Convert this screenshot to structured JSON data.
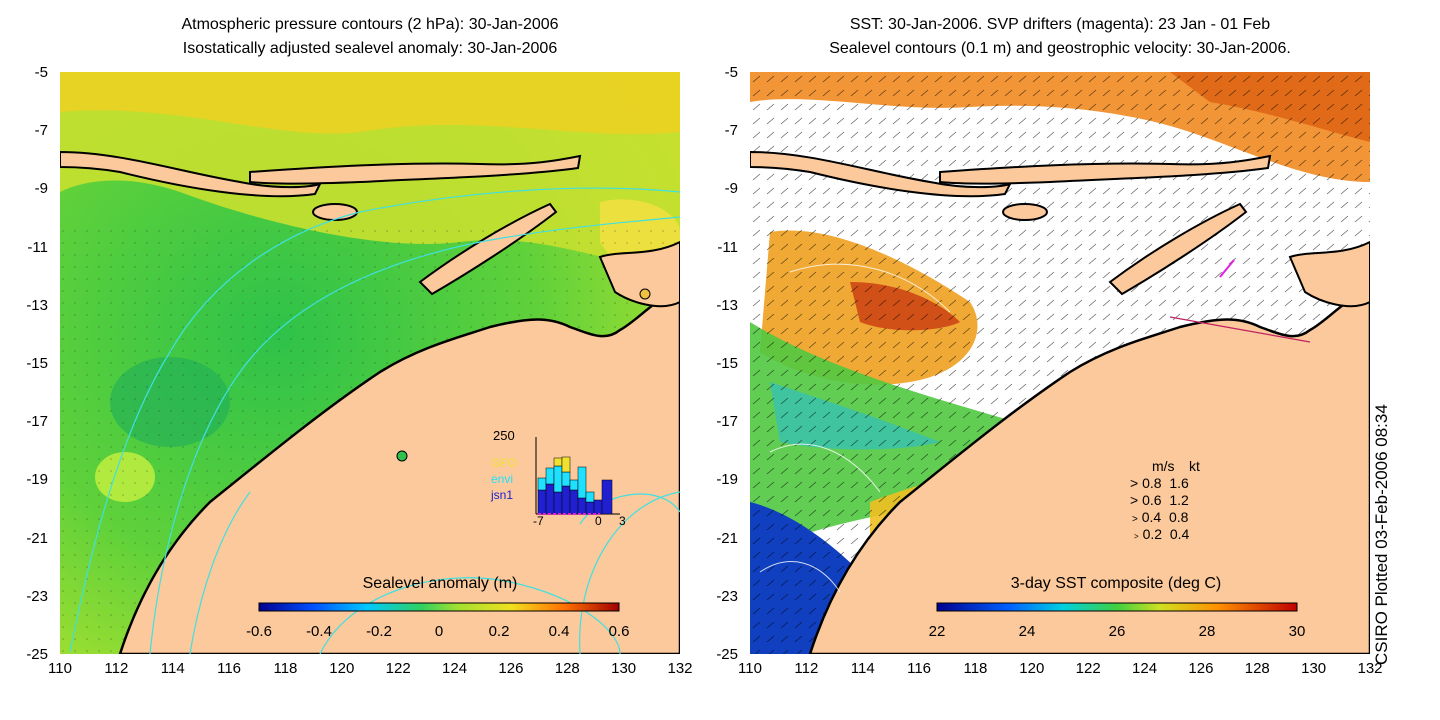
{
  "left_panel": {
    "title_line1": "Atmospheric pressure contours (2 hPa): 30-Jan-2006",
    "title_line2": "Isostatically adjusted sealevel anomaly: 30-Jan-2006",
    "colorbar_label": "Sealevel anomaly (m)",
    "colorbar_ticks": [
      "-0.6",
      "-0.4",
      "-0.2",
      "0",
      "0.2",
      "0.4",
      "0.6"
    ],
    "inset": {
      "ymax_label": "250",
      "series_labels": [
        "GFO",
        "envi",
        "jsn1"
      ],
      "series_colors": [
        "#f0e030",
        "#20e0ff",
        "#2020d0"
      ],
      "x_labels": [
        "-7",
        "0",
        "3"
      ]
    }
  },
  "right_panel": {
    "title_line1": "SST: 30-Jan-2006. SVP drifters (magenta): 23 Jan - 01 Feb",
    "title_line2": "Sealevel contours (0.1 m) and geostrophic velocity: 30-Jan-2006.",
    "colorbar_label": "3-day SST composite (deg C)",
    "colorbar_ticks": [
      "22",
      "24",
      "26",
      "28",
      "30"
    ],
    "speed_legend": {
      "header_ms": "m/s",
      "header_kt": "kt",
      "rows": [
        {
          "ms": "0.8",
          "kt": "1.6"
        },
        {
          "ms": "0.6",
          "kt": "1.2"
        },
        {
          "ms": "0.4",
          "kt": "0.8"
        },
        {
          "ms": "0.2",
          "kt": "0.4"
        }
      ]
    }
  },
  "axes": {
    "lat_labels": [
      "-5",
      "-7",
      "-9",
      "-11",
      "-13",
      "-15",
      "-17",
      "-19",
      "-21",
      "-23",
      "-25"
    ],
    "lon_labels": [
      "110",
      "112",
      "114",
      "116",
      "118",
      "120",
      "122",
      "124",
      "126",
      "128",
      "130",
      "132"
    ]
  },
  "credit": "CSIRO Plotted 03-Feb-2006 08:34",
  "colors": {
    "land": "#fbc99b",
    "coast": "#000000",
    "contour_left": "#40e0e0",
    "contour_right": "#ffffff",
    "drifter": "#e020e0"
  }
}
